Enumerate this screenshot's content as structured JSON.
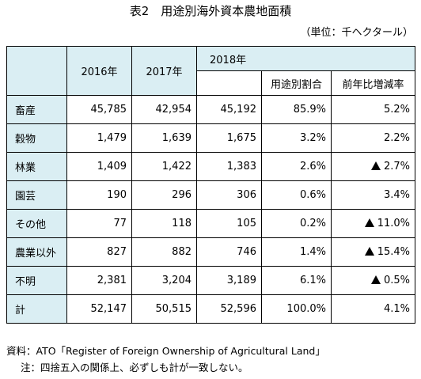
{
  "title": "表2　用途別海外資本農地面積",
  "unit": "（単位：千ヘクタール）",
  "columns": {
    "y2016": "2016年",
    "y2017": "2017年",
    "y2018": "2018年",
    "share": "用途別割合",
    "yoy": "前年比増減率"
  },
  "rows": [
    {
      "label": "畜産",
      "v2016": "45,785",
      "v2017": "42,954",
      "v2018": "45,192",
      "share": "85.9%",
      "yoy": "5.2%",
      "decrease": false
    },
    {
      "label": "穀物",
      "v2016": "1,479",
      "v2017": "1,639",
      "v2018": "1,675",
      "share": "3.2%",
      "yoy": "2.2%",
      "decrease": false
    },
    {
      "label": "林業",
      "v2016": "1,409",
      "v2017": "1,422",
      "v2018": "1,383",
      "share": "2.6%",
      "yoy": "2.7%",
      "decrease": true
    },
    {
      "label": "園芸",
      "v2016": "190",
      "v2017": "296",
      "v2018": "306",
      "share": "0.6%",
      "yoy": "3.4%",
      "decrease": false
    },
    {
      "label": "その他",
      "v2016": "77",
      "v2017": "118",
      "v2018": "105",
      "share": "0.2%",
      "yoy": "11.0%",
      "decrease": true
    },
    {
      "label": "農業以外",
      "v2016": "827",
      "v2017": "882",
      "v2018": "746",
      "share": "1.4%",
      "yoy": "15.4%",
      "decrease": true
    },
    {
      "label": "不明",
      "v2016": "2,381",
      "v2017": "3,204",
      "v2018": "3,189",
      "share": "6.1%",
      "yoy": "0.5%",
      "decrease": true
    },
    {
      "label": "計",
      "v2016": "52,147",
      "v2017": "50,515",
      "v2018": "52,596",
      "share": "100.0%",
      "yoy": "4.1%",
      "decrease": false
    }
  ],
  "source": "資料：ATO「Register of Foreign Ownership of Agricultural Land」",
  "note": "注：四捨五入の関係上、必ずしも計が一致しない。",
  "colors": {
    "header_bg": "#daeef3",
    "border": "#000000",
    "text": "#000000"
  }
}
